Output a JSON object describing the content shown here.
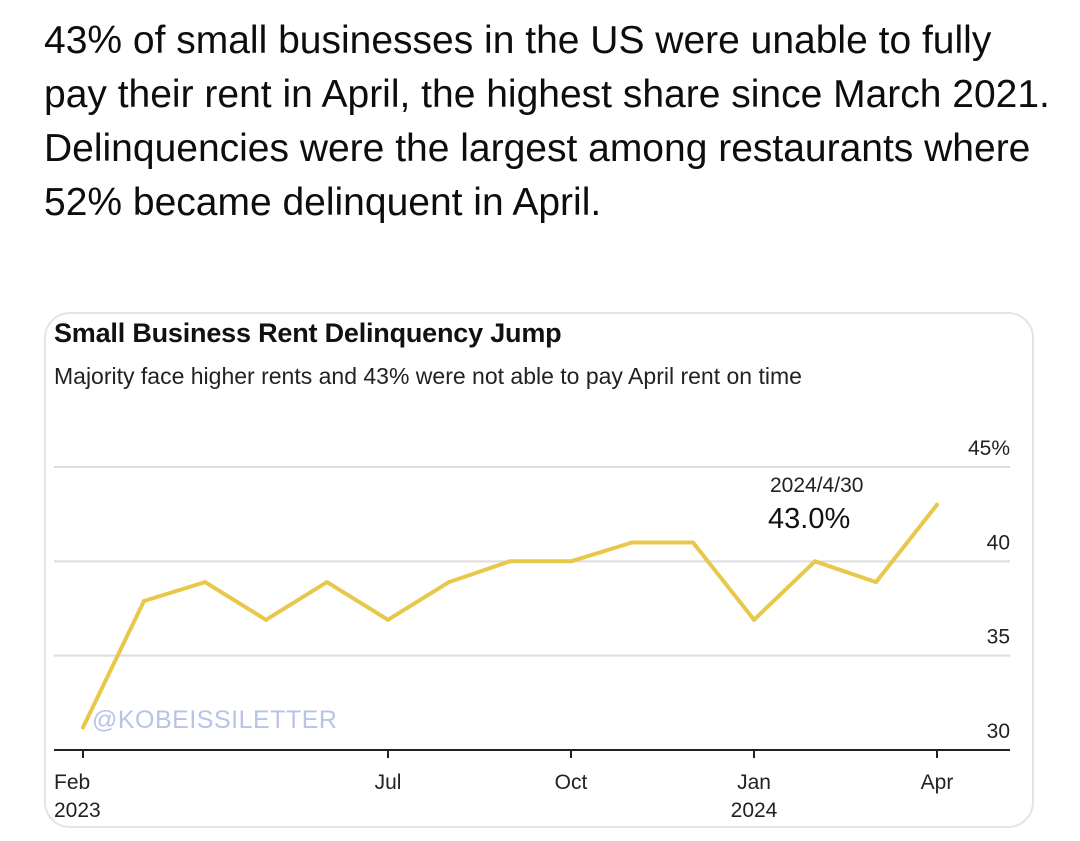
{
  "headline": "43% of small businesses in the US were unable to fully pay their rent in April, the highest share since March 2021. Delinquencies were the largest among restaurants where 52% became delinquent in April.",
  "watermark": "@KOBEISSILETTER",
  "colors": {
    "line": "#e8c84a",
    "grid": "#dddddd",
    "axis": "#222222"
  },
  "chart_data": {
    "type": "line",
    "title": "Small Business Rent Delinquency Jump",
    "subtitle": "Majority face higher rents and 43% were not able to pay April rent on time",
    "x": [
      "2023-02",
      "2023-03",
      "2023-04",
      "2023-05",
      "2023-06",
      "2023-07",
      "2023-08",
      "2023-09",
      "2023-10",
      "2023-11",
      "2023-12",
      "2024-01",
      "2024-02",
      "2024-03",
      "2024-04"
    ],
    "series": [
      {
        "values": [
          31.2,
          37.9,
          38.9,
          36.9,
          38.9,
          36.9,
          38.9,
          40.0,
          40.0,
          41.0,
          41.0,
          36.9,
          40.0,
          38.9,
          43.0
        ]
      }
    ],
    "ylim": [
      30,
      45
    ],
    "y_ticks": [
      "30",
      "35",
      "40",
      "45%"
    ],
    "x_tick_labels": [
      {
        "month": "Feb",
        "year": "2023"
      },
      {
        "month": "Jul",
        "year": ""
      },
      {
        "month": "Oct",
        "year": ""
      },
      {
        "month": "Jan",
        "year": "2024"
      },
      {
        "month": "Apr",
        "year": ""
      }
    ],
    "annotation": {
      "date": "2024/4/30",
      "value": "43.0%"
    },
    "grid": true,
    "legend": "none"
  }
}
